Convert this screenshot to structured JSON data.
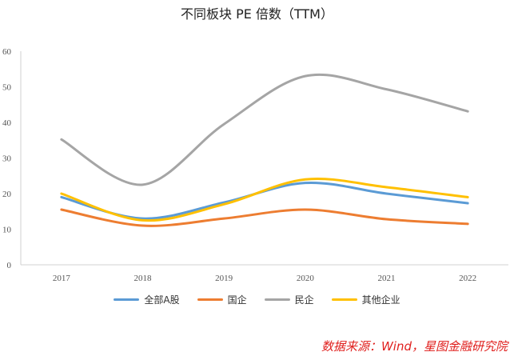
{
  "chart_data": {
    "type": "line",
    "title": "不同板块 PE 倍数（TTM）",
    "categories": [
      "2017",
      "2018",
      "2019",
      "2020",
      "2021",
      "2022"
    ],
    "ylim": [
      0,
      60
    ],
    "yticks": [
      0,
      10,
      20,
      30,
      40,
      50,
      60
    ],
    "series": [
      {
        "name": "全部A股",
        "color": "#5b9bd5",
        "values": [
          19,
          13,
          17.5,
          23,
          20,
          17.3
        ]
      },
      {
        "name": "国企",
        "color": "#ed7d31",
        "values": [
          15.5,
          11,
          13,
          15.5,
          12.8,
          11.5
        ]
      },
      {
        "name": "民企",
        "color": "#a5a5a5",
        "values": [
          35.2,
          22.5,
          39.5,
          53,
          49.3,
          43.1
        ]
      },
      {
        "name": "其他企业",
        "color": "#ffc000",
        "values": [
          20,
          12.5,
          17,
          24,
          21.8,
          19
        ]
      }
    ],
    "legend_position": "bottom",
    "grid": false
  },
  "source_note": "数据来源：Wind，星图金融研究院"
}
